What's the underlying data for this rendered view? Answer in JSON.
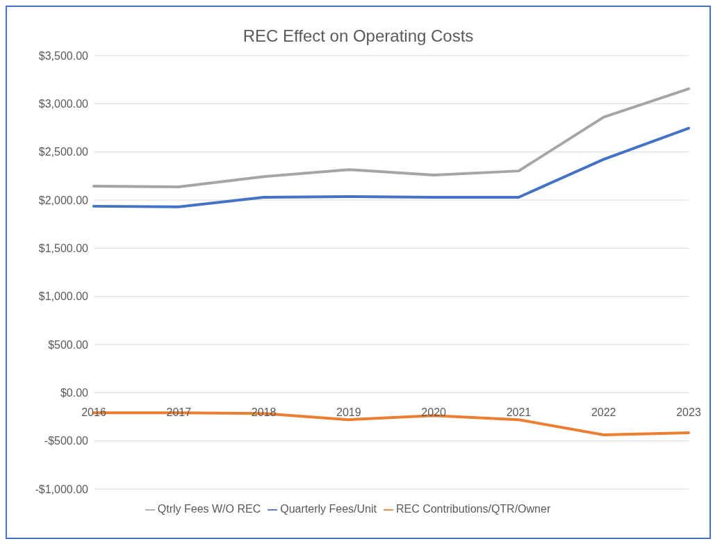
{
  "chart_data": {
    "type": "line",
    "title": "REC Effect on Operating Costs",
    "categories": [
      "2016",
      "2017",
      "2018",
      "2019",
      "2020",
      "2021",
      "2022",
      "2023"
    ],
    "series": [
      {
        "name": "Quarterly Fees/Unit",
        "color": "#4472c4",
        "values": [
          1936,
          1929,
          2029,
          2036,
          2029,
          2029,
          2423,
          2746
        ]
      },
      {
        "name": "REC Contributions/QTR/Owner",
        "color": "#ed7d31",
        "values": [
          -208,
          -208,
          -215,
          -280,
          -237,
          -280,
          -437,
          -416
        ]
      },
      {
        "name": "Qtrly Fees W/O REC",
        "color": "#a5a5a5",
        "values": [
          2144,
          2137,
          2244,
          2316,
          2259,
          2302,
          2861,
          3155
        ]
      }
    ],
    "ylim": [
      -1000,
      3500
    ],
    "yticks": [
      {
        "value": -1000,
        "label": "-$1,000.00"
      },
      {
        "value": -500,
        "label": "-$500.00"
      },
      {
        "value": 0,
        "label": "$0.00"
      },
      {
        "value": 500,
        "label": "$500.00"
      },
      {
        "value": 1000,
        "label": "$1,000.00"
      },
      {
        "value": 1500,
        "label": "$1,500.00"
      },
      {
        "value": 2000,
        "label": "$2,000.00"
      },
      {
        "value": 2500,
        "label": "$2,500.00"
      },
      {
        "value": 3000,
        "label": "$3,000.00"
      },
      {
        "value": 3500,
        "label": "$3,500.00"
      }
    ],
    "grid": "y",
    "legend": "bottom",
    "marker": "none",
    "line_style": "solid"
  }
}
